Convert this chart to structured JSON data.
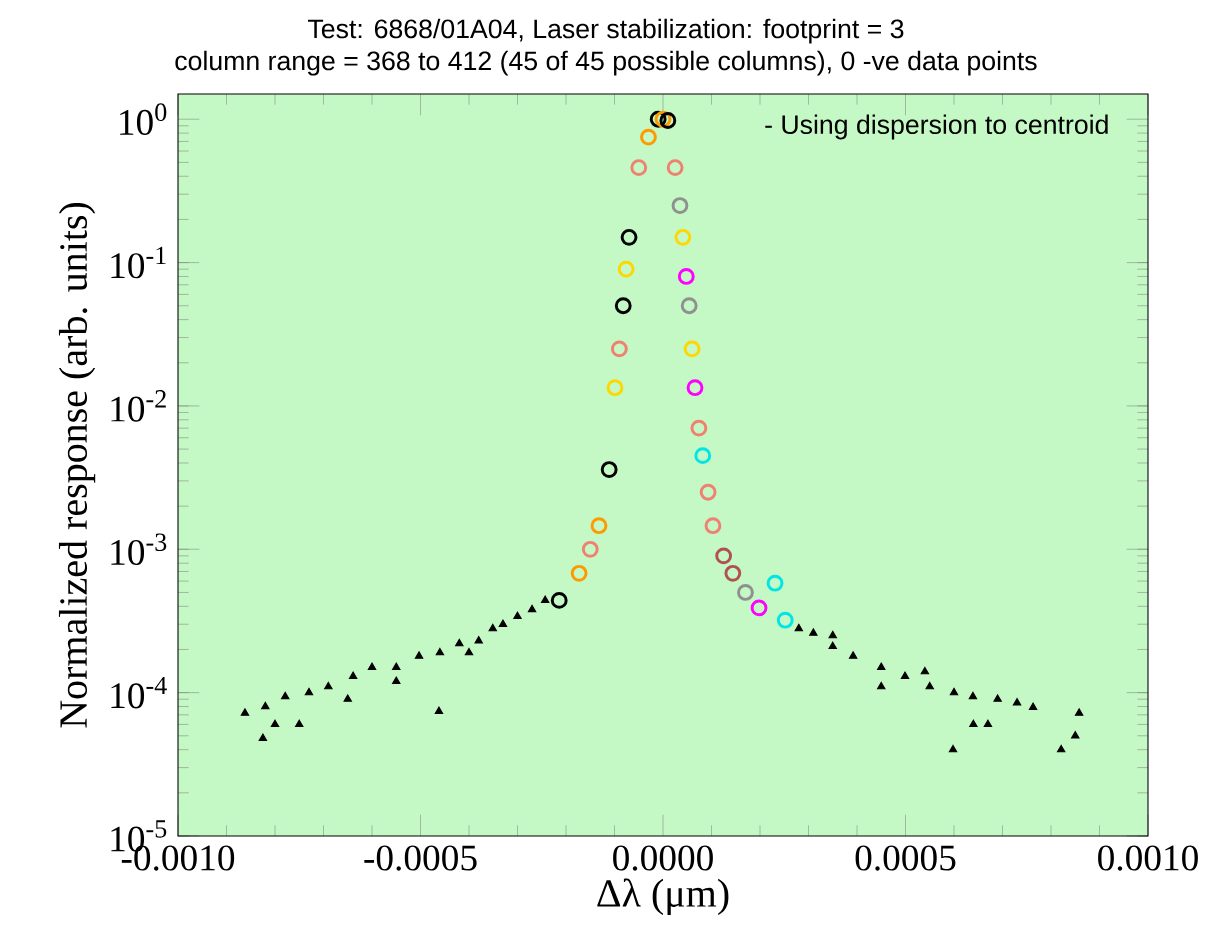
{
  "chart_data": {
    "type": "scatter",
    "title": "Test: 6868/01A04, Laser stabilization: footprint = 3",
    "subtitle": "column range = 368 to 412 (45 of 45 possible columns), 0 -ve data points",
    "xlabel": "Δλ (μm)",
    "ylabel": "Normalized response (arb. units)",
    "annotations": [
      "- Using dispersion to centroid"
    ],
    "log": "y",
    "xlim": [
      -0.001,
      0.001
    ],
    "ylim": [
      1e-05,
      1.5
    ],
    "xticks": [
      {
        "value": -0.001,
        "label": "-0.0010"
      },
      {
        "value": -0.0005,
        "label": "-0.0005"
      },
      {
        "value": 0,
        "label": "0.0000"
      },
      {
        "value": 0.0005,
        "label": "0.0005"
      },
      {
        "value": 0.001,
        "label": "0.0010"
      }
    ],
    "yticks": [
      {
        "value": 1e-05,
        "label": "10$^{-5}$"
      },
      {
        "value": 0.0001,
        "label": "10$^{-4}$"
      },
      {
        "value": 0.001,
        "label": "10$^{-3}$"
      },
      {
        "value": 0.01,
        "label": "10$^{-2}$"
      },
      {
        "value": 0.1,
        "label": "10$^{-1}$"
      },
      {
        "value": 1,
        "label": "10$^{0}$"
      }
    ],
    "series": [
      {
        "marker": "triangle",
        "color": "#000000",
        "x": [
          -0.000243,
          -0.00027,
          -0.0003,
          -0.00033,
          -0.000351,
          -0.00038,
          -0.00042,
          -0.00046,
          -0.000503,
          -0.00055,
          -0.0006,
          -0.000639,
          -0.00069,
          -0.00073,
          -0.000779,
          -0.00082,
          -0.000862,
          -0.000462,
          -0.000825,
          -0.0008,
          -0.00075,
          -0.00065,
          -0.00055,
          -0.0004,
          0.00028,
          0.00031,
          0.00035,
          0.000392,
          0.00045,
          0.000499,
          0.00055,
          0.0006,
          0.000639,
          0.00069,
          0.00073,
          0.000763,
          0.000858,
          0.000598,
          0.000821,
          0.00064,
          0.00067,
          0.00045,
          0.00054,
          0.00085,
          0.00035
        ],
        "values": [
          0.00044,
          0.00038,
          0.00034,
          0.0003,
          0.00028,
          0.00023,
          0.00022,
          0.00019,
          0.00018,
          0.00015,
          0.00015,
          0.00013,
          0.00011,
          0.0001,
          9.4e-05,
          8e-05,
          7.2e-05,
          7.4e-05,
          4.8e-05,
          6e-05,
          6e-05,
          9e-05,
          0.00012,
          0.00019,
          0.00028,
          0.00026,
          0.00021,
          0.00018,
          0.00015,
          0.00013,
          0.00011,
          0.0001,
          9.4e-05,
          9e-05,
          8.5e-05,
          7.9e-05,
          7.2e-05,
          4e-05,
          4e-05,
          6e-05,
          6e-05,
          0.00011,
          0.00014,
          5e-05,
          0.00025
        ]
      },
      {
        "marker": "circle",
        "x": [
          -1e-05,
          0,
          1e-05,
          -3e-05,
          -5e-05,
          -7e-05,
          -7.6e-05,
          -8.2e-05,
          -9e-05,
          -9.9e-05,
          -0.000111,
          -0.000132,
          -0.00015,
          -0.000173,
          -0.000214,
          2.5e-05,
          3.5e-05,
          4.1e-05,
          4.8e-05,
          5.4e-05,
          6e-05,
          6.6e-05,
          7.4e-05,
          8.2e-05,
          9.3e-05,
          0.000103,
          0.000125,
          0.000144,
          0.00017,
          0.000198,
          0.000231,
          0.000252
        ],
        "values": [
          1.0,
          1.0,
          0.98,
          0.75,
          0.46,
          0.15,
          0.09,
          0.05,
          0.025,
          0.0134,
          0.0036,
          0.00146,
          0.001,
          0.00068,
          0.00044,
          0.46,
          0.25,
          0.15,
          0.08,
          0.05,
          0.025,
          0.0134,
          0.007,
          0.0045,
          0.0025,
          0.00146,
          0.0009,
          0.00068,
          0.0005,
          0.00039,
          0.00058,
          0.00032
        ],
        "colors": [
          "#000000",
          "#ff9900",
          "#000000",
          "#ff9900",
          "#f08070",
          "#000000",
          "#ffd700",
          "#000000",
          "#f08070",
          "#ffd700",
          "#000000",
          "#ff9900",
          "#f08070",
          "#ff9900",
          "#000000",
          "#f08070",
          "#909090",
          "#ffd700",
          "#ff00ff",
          "#909090",
          "#ffd700",
          "#ff00ff",
          "#f08070",
          "#00e5e5",
          "#f08070",
          "#f08070",
          "#b05050",
          "#b05050",
          "#909090",
          "#ff00ff",
          "#00e5e5",
          "#00e5e5"
        ]
      }
    ]
  }
}
